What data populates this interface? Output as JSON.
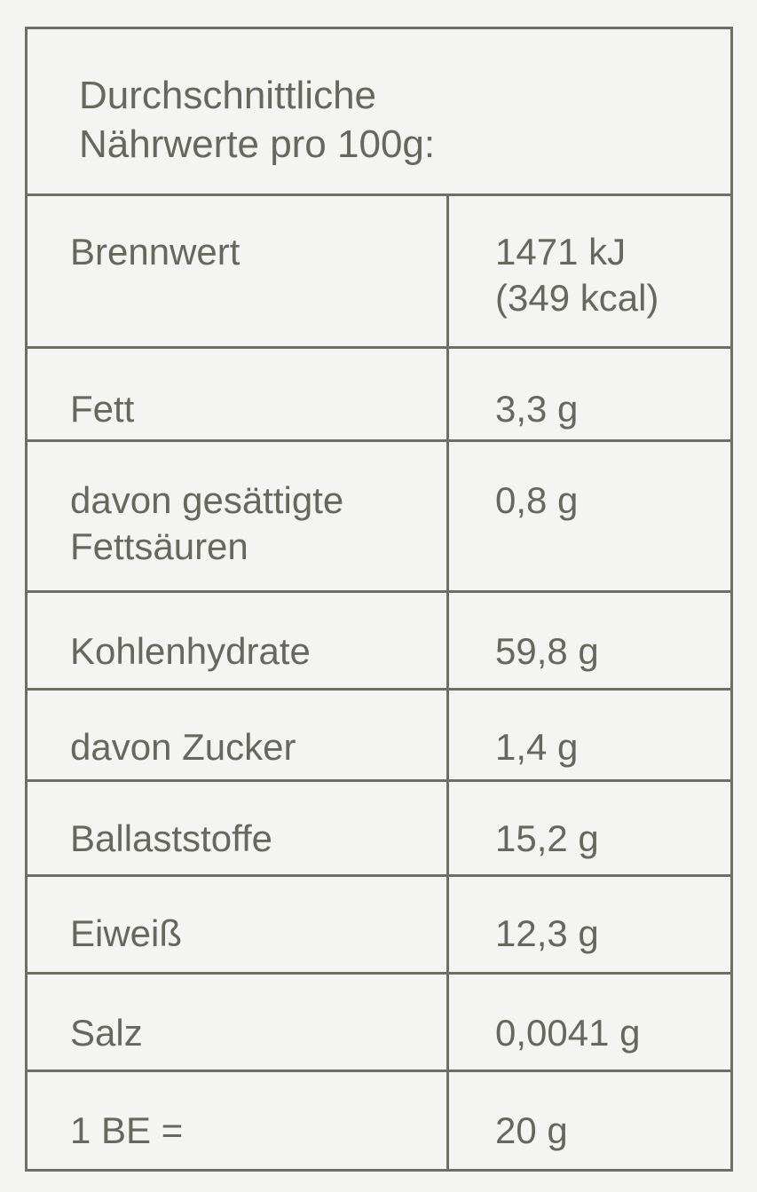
{
  "title_line1": "Durchschnittliche",
  "title_line2": "Nährwerte pro 100g:",
  "rows": [
    {
      "label": "Brennwert",
      "value": "1471 kJ",
      "value2": "(349 kcal)"
    },
    {
      "label": "Fett",
      "value": "3,3 g"
    },
    {
      "label": "davon gesättigte",
      "label2": "Fettsäuren",
      "value": "0,8 g"
    },
    {
      "label": "Kohlenhydrate",
      "value": "59,8 g"
    },
    {
      "label": "davon Zucker",
      "value": "1,4 g"
    },
    {
      "label": "Ballaststoffe",
      "value": "15,2 g"
    },
    {
      "label": "Eiweiß",
      "value": "12,3 g"
    },
    {
      "label": "Salz",
      "value": "0,0041 g"
    },
    {
      "label": "1 BE =",
      "value": "20 g"
    }
  ]
}
